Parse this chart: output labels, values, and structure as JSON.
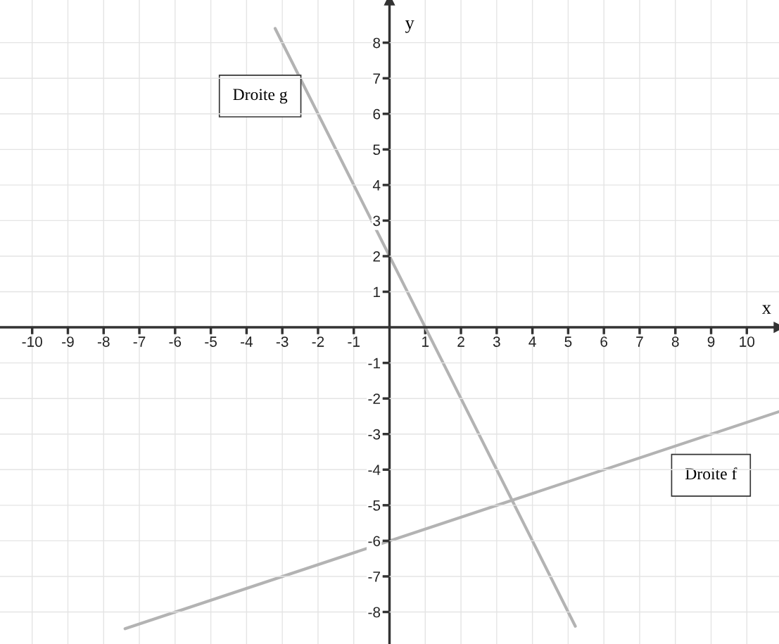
{
  "chart_data": {
    "type": "line",
    "xlabel": "x",
    "ylabel": "y",
    "series": [
      {
        "name": "Droite g",
        "color": "#b3b3b3",
        "x": [
          -3.2,
          5.2
        ],
        "values": [
          8.4,
          -8.4
        ]
      },
      {
        "name": "Droite f",
        "color": "#b3b3b3",
        "x": [
          -7.4,
          10.9
        ],
        "values": [
          -8.47,
          -2.37
        ]
      }
    ],
    "xlim": [
      -10.9,
      10.9
    ],
    "ylim": [
      -8.9,
      9.2
    ],
    "xticks": [
      -10,
      -9,
      -8,
      -7,
      -6,
      -5,
      -4,
      -3,
      -2,
      -1,
      1,
      2,
      3,
      4,
      5,
      6,
      7,
      8,
      9,
      10
    ],
    "yticks": [
      -8,
      -7,
      -6,
      -5,
      -4,
      -3,
      -2,
      -1,
      1,
      2,
      3,
      4,
      5,
      6,
      7,
      8
    ],
    "grid": true,
    "marker": "none",
    "line_style": "solid"
  }
}
